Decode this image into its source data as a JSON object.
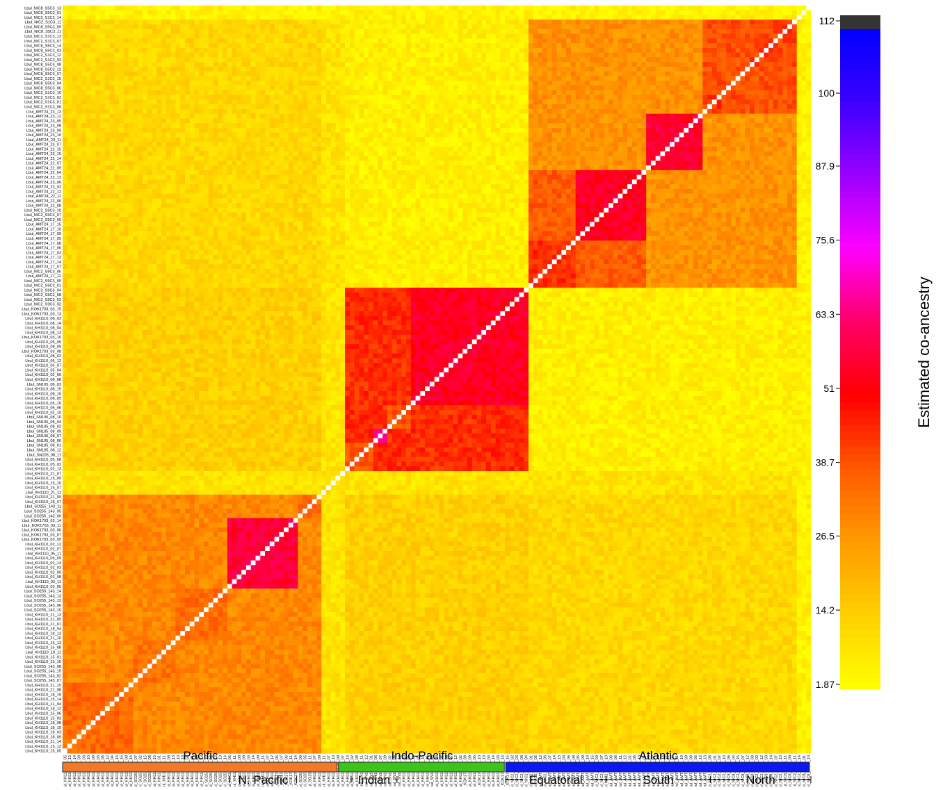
{
  "chart_data": {
    "type": "heatmap",
    "title": "",
    "color_scale": {
      "label": "Estimated co-ancestry",
      "min": 1.87,
      "max": 112,
      "ticks": [
        "1.87",
        "14.2",
        "26.5",
        "38.7",
        "51",
        "63.3",
        "75.6",
        "87.9",
        "100",
        "112"
      ],
      "gradient": [
        "#ffff00",
        "#ffd000",
        "#ff9c00",
        "#ff5a00",
        "#ff0000",
        "#ff0066",
        "#ff00ff",
        "#9a00ff",
        "#3c00ff",
        "#0000ff"
      ],
      "top_color": "#333333"
    },
    "samples": [
      "Lbul_KH1110_15_05",
      "Lbul_KH1110_15_12",
      "Lbul_KH1110_21_14",
      "Lbul_KH1110_18_09",
      "Lbul_KH1110_18_03",
      "Lbul_KH1110_18_10",
      "Lbul_KH1110_18_08",
      "Lbul_KH1110_15_03",
      "Lbul_KH1110_15_06",
      "Lbul_KH1110_18_12",
      "Lbul_KH1110_21_04",
      "Lbul_KH1110_15_14",
      "Lbul_KH1110_18_15",
      "Lbul_KH1110_21_08",
      "Lbul_KH1110_21_15",
      "Lbul_SO255_143_07",
      "Lbul_SO255_143_02",
      "Lbul_SO255_143_15",
      "Lbul_SO255_143_08",
      "Lbul_KH1110_15_15",
      "Lbul_KH1110_15_01",
      "Lbul_KH1110_18_11",
      "Lbul_KH1110_15_08",
      "Lbul_KH1110_15_13",
      "Lbul_KH1110_21_10",
      "Lbul_KH1110_18_13",
      "Lbul_KH1110_18_04",
      "Lbul_KH1110_21_01",
      "Lbul_KH1110_21_05",
      "Lbul_KH1110_21_13",
      "Lbul_SO255_143_10",
      "Lbul_SO255_143_06",
      "Lbul_SO255_143_12",
      "Lbul_SO255_143_13",
      "Lbul_SO255_143_14",
      "Lbul_KH1110_02_05",
      "Lbul_KH1110_02_11",
      "Lbul_KH1110_02_08",
      "Lbul_KH1110_02_09",
      "Lbul_KH1110_02_03",
      "Lbul_KH1110_02_14",
      "Lbul_KH1110_05_09",
      "Lbul_KH1110_05_11",
      "Lbul_KH1110_02_07",
      "Lbul_KH1110_02_12",
      "Lbul_KOK1703_03_05",
      "Lbul_KOK1703_03_07",
      "Lbul_KOK1703_03_06",
      "Lbul_KOK1703_03_11",
      "Lbul_KOK1703_03_14",
      "Lbul_SO255_143_09",
      "Lbul_SO255_143_05",
      "Lbul_SO255_143_11",
      "Lbul_KH1110_18_07",
      "Lbul_KH1110_21_09",
      "Lbul_KH1110_21_11",
      "Lbul_KH1110_15_07",
      "Lbul_KH1110_15_10",
      "Lbul_KH1110_15_09",
      "Lbul_KH1110_21_07",
      "Lbul_KH1110_02_13",
      "Lbul_KH1110_05_02",
      "Lbul_KH1110_05_08",
      "Lbul_SN105_08_11",
      "Lbul_SN105_08_12",
      "Lbul_SN105_08_01",
      "Lbul_SN105_08_06",
      "Lbul_SN105_08_07",
      "Lbul_SN105_08_09",
      "Lbul_SN105_08_02",
      "Lbul_SN105_08_04",
      "Lbul_SN105_08_10",
      "Lbul_KH1110_02_10",
      "Lbul_KH1110_05_06",
      "Lbul_KH1110_05_10",
      "Lbul_KH1110_08_05",
      "Lbul_KH1110_08_10",
      "Lbul_KH1110_08_15",
      "Lbul_SN105_08_03",
      "Lbul_KH1110_08_08",
      "Lbul_KH1110_02_06",
      "Lbul_KH1110_05_04",
      "Lbul_KH1110_05_07",
      "Lbul_KH1110_05_12",
      "Lbul_KH1110_08_02",
      "Lbul_KOK1703_03_08",
      "Lbul_KH1110_08_09",
      "Lbul_KH1110_05_05",
      "Lbul_KOK1703_03_10",
      "Lbul_KH1110_08_13",
      "Lbul_KH1110_08_04",
      "Lbul_KH1110_08_14",
      "Lbul_KH1110_08_03",
      "Lbul_KOK1703_03_13",
      "Lbul_KOK1703_03_15",
      "Lbul_NIC2_S9C3_02",
      "Lbul_NIC2_S9C3_03",
      "Lbul_NIC2_S9C3_08",
      "Lbul_NIC2_S9C3_04",
      "Lbul_NIC2_S9C3_01",
      "Lbul_NIC2_S9C3_05",
      "Lbul_AMT24_17_12",
      "Lbul_NIC2_S9C3_06",
      "Lbul_AMT24_17_07",
      "Lbul_AMT24_17_14",
      "Lbul_AMT24_17_13",
      "Lbul_AMT24_17_03",
      "Lbul_AMT24_17_06",
      "Lbul_AMT24_17_08",
      "Lbul_AMT24_17_05",
      "Lbul_AMT24_17_09",
      "Lbul_AMT24_17_10",
      "Lbul_AMT24_17_15",
      "Lbul_NIC2_S9C3_09",
      "Lbul_NIC2_S9C3_07",
      "Lbul_NIC2_S9C3_10",
      "Lbul_AMT24_22_08",
      "Lbul_AMT24_22_06",
      "Lbul_AMT24_22_11",
      "Lbul_AMT24_22_12",
      "Lbul_AMT24_23_02",
      "Lbul_AMT24_23_06",
      "Lbul_AMT24_22_13",
      "Lbul_AMT24_22_04",
      "Lbul_AMT24_22_09",
      "Lbul_AMT24_22_07",
      "Lbul_AMT24_22_14",
      "Lbul_AMT24_23_15",
      "Lbul_AMT24_22_15",
      "Lbul_AMT24_23_07",
      "Lbul_AMT24_23_11",
      "Lbul_AMT24_23_10",
      "Lbul_AMT24_23_09",
      "Lbul_AMT24_23_08",
      "Lbul_AMT24_23_05",
      "Lbul_AMT24_23_12",
      "Lbul_AMT24_23_13",
      "Lbul_NIC2_S1C3_08",
      "Lbul_NIC2_S1C3_01",
      "Lbul_NIC2_S1C3_02",
      "Lbul_NIC2_S1C3_10",
      "Lbul_NIC8_S5C3_06",
      "Lbul_NIC8_S5C3_04",
      "Lbul_NIC2_S1C3_15",
      "Lbul_NIC8_S5C3_07",
      "Lbul_NIC8_S5C3_12",
      "Lbul_NIC8_S5C3_08",
      "Lbul_NIC2_S1C3_03",
      "Lbul_NIC2_S1C3_12",
      "Lbul_NIC8_S5C3_03",
      "Lbul_NIC8_S5C3_14",
      "Lbul_NIC2_S1C3_07",
      "Lbul_NIC2_S1C3_13",
      "Lbul_NIC8_S5C3_11",
      "Lbul_NIC8_S5C3_09",
      "Lbul_NIC2_S1C3_11",
      "Lbul_NIC2_S1C3_14",
      "Lbul_NIC8_S5C3_01",
      "Lbul_NIC8_S5C3_13"
    ],
    "blocks": [
      {
        "start": 0,
        "end": 60,
        "level": 30
      },
      {
        "start": 0,
        "end": 15,
        "level": 36
      },
      {
        "start": 15,
        "end": 24,
        "level": 34
      },
      {
        "start": 24,
        "end": 35,
        "level": 35
      },
      {
        "start": 35,
        "end": 50,
        "level": 58
      },
      {
        "start": 50,
        "end": 60,
        "level": 36
      },
      {
        "start": 60,
        "end": 99,
        "level": 45
      },
      {
        "start": 60,
        "end": 66,
        "level": 40
      },
      {
        "start": 66,
        "end": 69,
        "level": 65
      },
      {
        "start": 69,
        "end": 74,
        "level": 40
      },
      {
        "start": 74,
        "end": 99,
        "level": 55
      },
      {
        "start": 99,
        "end": 156,
        "level": 28
      },
      {
        "start": 99,
        "end": 124,
        "level": 38
      },
      {
        "start": 99,
        "end": 109,
        "level": 45
      },
      {
        "start": 109,
        "end": 124,
        "level": 55
      },
      {
        "start": 124,
        "end": 136,
        "level": 57
      },
      {
        "start": 136,
        "end": 156,
        "level": 40
      },
      {
        "start": 136,
        "end": 140,
        "level": 44
      },
      {
        "start": 146,
        "end": 156,
        "level": 42
      }
    ],
    "cross_blocks": [
      {
        "rows": [
          0,
          60
        ],
        "cols": [
          60,
          99
        ],
        "level": 14
      },
      {
        "rows": [
          0,
          60
        ],
        "cols": [
          99,
          156
        ],
        "level": 12
      },
      {
        "rows": [
          60,
          99
        ],
        "cols": [
          99,
          156
        ],
        "level": 6
      },
      {
        "rows": [
          99,
          124
        ],
        "cols": [
          136,
          156
        ],
        "level": 36
      },
      {
        "rows": [
          99,
          124
        ],
        "cols": [
          124,
          136
        ],
        "level": 28
      },
      {
        "rows": [
          124,
          136
        ],
        "cols": [
          136,
          156
        ],
        "level": 30
      }
    ],
    "low_bands": [
      {
        "start": 55,
        "end": 60,
        "level": 9
      }
    ],
    "diagonal": "white",
    "groups": [
      {
        "label": "Pacific",
        "start": 0,
        "end": 66,
        "color": "#f07a2c"
      },
      {
        "label": "Indo-Pacific",
        "start": 66,
        "end": 106,
        "color": "#3cc41a"
      },
      {
        "label": "Atlantic",
        "start": 106,
        "end": 179,
        "color": "#0b18ef"
      }
    ],
    "subgroups": [
      {
        "label": "N. Pacific",
        "start": 40,
        "end": 56
      },
      {
        "label": "Indian",
        "start": 69,
        "end": 80
      },
      {
        "label": "Equatorial",
        "start": 106,
        "end": 130
      },
      {
        "label": "South",
        "start": 130,
        "end": 155
      },
      {
        "label": "North",
        "start": 155,
        "end": 179
      }
    ]
  }
}
